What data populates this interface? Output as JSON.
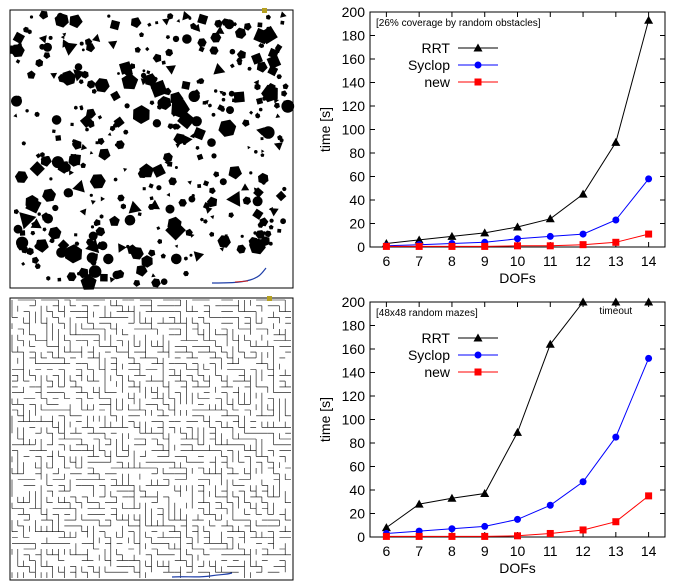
{
  "colors": {
    "rrt": "#000000",
    "syclop": "#0000ff",
    "new": "#ff0000",
    "obstacle": "#000000",
    "maze_wall": "#000000",
    "start_marker": "#b5a020",
    "path_blue": "#1f3fa8",
    "path_red": "#cc2222"
  },
  "scenes": [
    {
      "name": "random-obstacles-scene",
      "icons": [
        "hexagon-obstacle",
        "triangle-obstacle",
        "diamond-obstacle",
        "circle-obstacle"
      ]
    },
    {
      "name": "random-maze-scene",
      "icons": [
        "maze-wall"
      ]
    }
  ],
  "chart_data": [
    {
      "type": "line",
      "title": "",
      "annotation": "[26% coverage by random obstacles]",
      "xlabel": "DOFs",
      "ylabel": "time [s]",
      "x": [
        6,
        7,
        8,
        9,
        10,
        11,
        12,
        13,
        14
      ],
      "xlim": [
        5.5,
        14.5
      ],
      "ylim": [
        0,
        200
      ],
      "yticks": [
        0,
        20,
        40,
        60,
        80,
        100,
        120,
        140,
        160,
        180,
        200
      ],
      "legend": "top-left",
      "grid": false,
      "series": [
        {
          "name": "RRT",
          "marker": "triangle",
          "values": [
            3,
            6,
            9,
            12,
            17,
            24,
            45,
            89,
            193
          ]
        },
        {
          "name": "Syclop",
          "marker": "circle",
          "values": [
            1,
            2,
            3,
            4,
            7,
            9,
            11,
            23,
            58
          ]
        },
        {
          "name": "new",
          "marker": "square",
          "values": [
            0.5,
            0.5,
            0.5,
            0.5,
            1,
            1,
            2,
            4,
            11
          ]
        }
      ]
    },
    {
      "type": "line",
      "title": "",
      "annotation": "[48x48 random mazes]",
      "timeout_label": "timeout",
      "xlabel": "DOFs",
      "ylabel": "time [s]",
      "x": [
        6,
        7,
        8,
        9,
        10,
        11,
        12,
        13,
        14
      ],
      "xlim": [
        5.5,
        14.5
      ],
      "ylim": [
        0,
        200
      ],
      "yticks": [
        0,
        20,
        40,
        60,
        80,
        100,
        120,
        140,
        160,
        180,
        200
      ],
      "legend": "top-left",
      "grid": false,
      "series": [
        {
          "name": "RRT",
          "marker": "triangle",
          "values": [
            8,
            28,
            33,
            37,
            89,
            164,
            200,
            200,
            200
          ]
        },
        {
          "name": "Syclop",
          "marker": "circle",
          "values": [
            3,
            5,
            7,
            9,
            15,
            27,
            47,
            85,
            152
          ]
        },
        {
          "name": "new",
          "marker": "square",
          "values": [
            0.5,
            0.5,
            0.5,
            0.5,
            1,
            3,
            6,
            13,
            35
          ]
        }
      ]
    }
  ]
}
